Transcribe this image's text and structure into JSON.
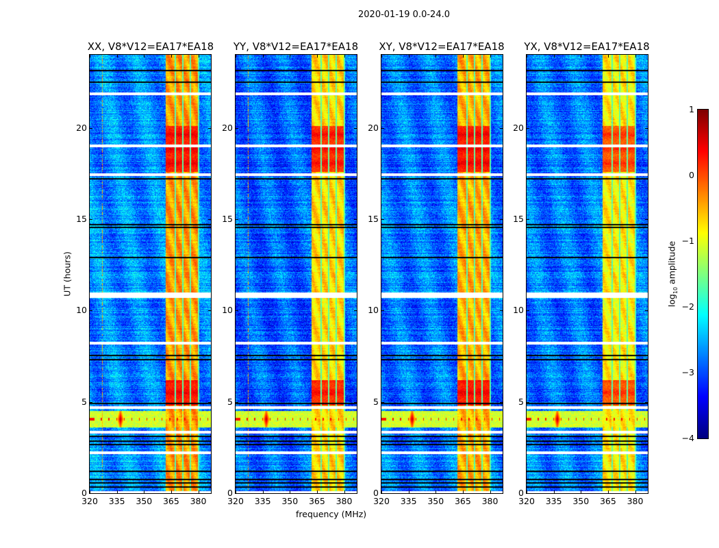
{
  "chart_data": {
    "type": "heatmap",
    "title": "2020-01-19 0.0-24.0",
    "xlabel": "frequency (MHz)",
    "ylabel": "UT (hours)",
    "xlim": [
      320,
      387
    ],
    "ylim": [
      0,
      24
    ],
    "xticks": [
      320,
      335,
      350,
      365,
      380
    ],
    "xtick_labels": [
      "320",
      "335",
      "350",
      "365",
      "380"
    ],
    "yticks": [
      0,
      5,
      10,
      15,
      20
    ],
    "ytick_labels": [
      "0",
      "5",
      "10",
      "15",
      "20"
    ],
    "panels": [
      {
        "title": "XX, V8*V12=EA17*EA18",
        "background_level": -2.7,
        "band_level": -0.4,
        "bright_level": 0.5,
        "rfi_line_mhz": 327
      },
      {
        "title": "YY, V8*V12=EA17*EA18",
        "background_level": -2.9,
        "band_level": -0.7,
        "bright_level": 0.4,
        "rfi_line_mhz": 327
      },
      {
        "title": "XY, V8*V12=EA17*EA18",
        "background_level": -2.8,
        "band_level": -0.5,
        "bright_level": 0.5,
        "rfi_line_mhz": null
      },
      {
        "title": "YX, V8*V12=EA17*EA18",
        "background_level": -2.8,
        "band_level": -0.8,
        "bright_level": 0.2,
        "rfi_line_mhz": null
      }
    ],
    "features": {
      "rfi_band_mhz": [
        362,
        380.5
      ],
      "subband_gaps_mhz": [
        367.2,
        371.5,
        375.8,
        380.2
      ],
      "bright_hours": [
        [
          17.6,
          20.1
        ],
        [
          4.8,
          6.2
        ]
      ],
      "burst_hours": [
        3.6,
        4.5
      ],
      "burst_peak_mhz": 337,
      "flagged_hours": [
        0.05,
        2.2,
        3.35,
        4.7,
        8.2,
        10.75,
        10.9,
        17.45,
        19.0,
        21.85
      ],
      "dropout_hours": [
        0.35,
        0.55,
        0.75,
        1.2,
        2.65,
        2.85,
        3.1,
        4.9,
        7.3,
        7.55,
        12.9,
        14.55,
        14.7,
        17.2,
        22.5,
        23.15
      ]
    },
    "colorbar": {
      "label_prefix": "log",
      "label_sub": "10",
      "label_suffix": " amplitude",
      "range": [
        -4,
        1
      ],
      "ticks": [
        1,
        0,
        -1,
        -2,
        -3,
        -4
      ],
      "tick_labels": [
        "1",
        "0",
        "−1",
        "−2",
        "−3",
        "−4"
      ],
      "colormap": "jet"
    }
  }
}
